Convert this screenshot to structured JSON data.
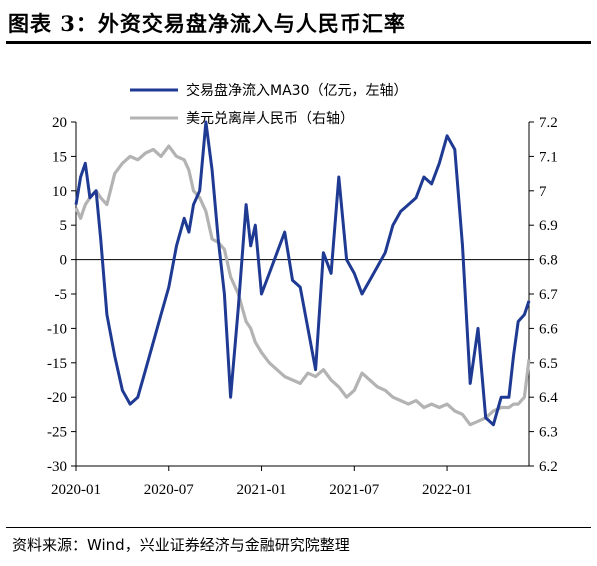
{
  "header": {
    "title": "图表 3：外资交易盘净流入与人民币汇率"
  },
  "footer": {
    "source": "资料来源：Wind，兴业证券经济与金融研究院整理"
  },
  "chart_data": {
    "type": "line",
    "title": "",
    "xlabel": "",
    "ylabel": "",
    "x_ticks": [
      "2020-01",
      "2020-07",
      "2021-01",
      "2021-07",
      "2022-01"
    ],
    "y_left": {
      "ticks": [
        "20",
        "15",
        "10",
        "5",
        "0",
        "-5",
        "-10",
        "-15",
        "-20",
        "-25",
        "-30"
      ],
      "range": [
        -30,
        20
      ]
    },
    "y_right": {
      "ticks": [
        "7.2",
        "7.1",
        "7",
        "6.9",
        "6.8",
        "6.7",
        "6.6",
        "6.5",
        "6.4",
        "6.3",
        "6.2"
      ],
      "range": [
        6.2,
        7.2
      ]
    },
    "legend_position": "top-center",
    "grid": false,
    "series": [
      {
        "name": "交易盘净流入MA30（亿元，左轴）",
        "axis": "left",
        "color": "#1f3a93",
        "x": [
          0,
          0.3,
          0.6,
          0.9,
          1.3,
          1.6,
          2,
          2.5,
          3,
          3.5,
          4,
          4.5,
          5,
          5.5,
          6,
          6.5,
          7,
          7.3,
          7.6,
          8,
          8.4,
          8.8,
          9.2,
          9.6,
          10,
          10.5,
          11,
          11.3,
          11.6,
          12,
          12.5,
          13,
          13.5,
          14,
          14.5,
          15,
          15.5,
          16,
          16.5,
          17,
          17.5,
          18,
          18.5,
          19,
          19.5,
          20,
          20.5,
          21,
          21.5,
          22,
          22.5,
          23,
          23.5,
          24,
          24.5,
          25,
          25.5,
          26,
          26.5,
          27,
          27.5,
          28,
          28.3,
          28.6,
          29,
          29.3
        ],
        "values": [
          8,
          12,
          14,
          9,
          10,
          3,
          -8,
          -14,
          -19,
          -21,
          -20,
          -16,
          -12,
          -8,
          -4,
          2,
          6,
          4,
          8,
          10,
          20,
          13,
          3,
          -5,
          -20,
          -7,
          8,
          2,
          5,
          -5,
          -2,
          1,
          4,
          -3,
          -4,
          -10,
          -16,
          1,
          -2,
          12,
          0,
          -2,
          -5,
          -3,
          -1,
          1,
          5,
          7,
          8,
          9,
          12,
          11,
          14,
          18,
          16,
          2,
          -18,
          -10,
          -23,
          -24,
          -20,
          -20,
          -14,
          -9,
          -8,
          -6
        ]
      },
      {
        "name": "美元兑离岸人民币（右轴）",
        "axis": "right",
        "color": "#b3b3b3",
        "x": [
          0,
          0.3,
          0.6,
          0.9,
          1.3,
          1.6,
          2,
          2.5,
          3,
          3.5,
          4,
          4.5,
          5,
          5.5,
          6,
          6.5,
          7,
          7.3,
          7.6,
          8,
          8.4,
          8.8,
          9.2,
          9.6,
          10,
          10.5,
          11,
          11.3,
          11.6,
          12,
          12.5,
          13,
          13.5,
          14,
          14.5,
          15,
          15.5,
          16,
          16.5,
          17,
          17.5,
          18,
          18.5,
          19,
          19.5,
          20,
          20.5,
          21,
          21.5,
          22,
          22.5,
          23,
          23.5,
          24,
          24.5,
          25,
          25.5,
          26,
          26.5,
          27,
          27.5,
          28,
          28.3,
          28.6,
          29,
          29.3
        ],
        "values": [
          6.95,
          6.92,
          6.96,
          6.98,
          7.0,
          6.98,
          6.96,
          7.05,
          7.08,
          7.1,
          7.09,
          7.11,
          7.12,
          7.1,
          7.13,
          7.1,
          7.09,
          7.06,
          7.0,
          6.98,
          6.94,
          6.86,
          6.85,
          6.83,
          6.75,
          6.7,
          6.62,
          6.6,
          6.56,
          6.53,
          6.5,
          6.48,
          6.46,
          6.45,
          6.44,
          6.47,
          6.46,
          6.48,
          6.45,
          6.43,
          6.4,
          6.42,
          6.47,
          6.45,
          6.43,
          6.42,
          6.4,
          6.39,
          6.38,
          6.39,
          6.37,
          6.38,
          6.37,
          6.38,
          6.36,
          6.35,
          6.32,
          6.33,
          6.34,
          6.36,
          6.37,
          6.37,
          6.38,
          6.38,
          6.4,
          6.51
        ]
      }
    ]
  }
}
